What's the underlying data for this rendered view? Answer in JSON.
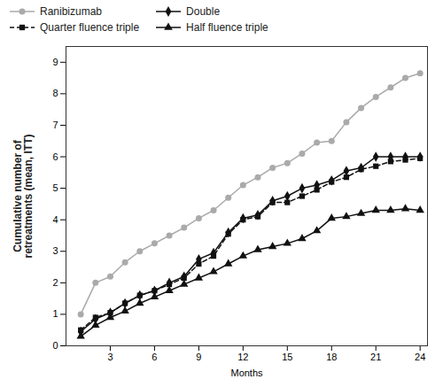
{
  "chart_data": {
    "type": "line",
    "xlabel": "Months",
    "ylabel": "Cumulative number of\nretreatments (mean, ITT)",
    "x": [
      1,
      2,
      3,
      4,
      5,
      6,
      7,
      8,
      9,
      10,
      11,
      12,
      13,
      14,
      15,
      16,
      17,
      18,
      19,
      20,
      21,
      22,
      23,
      24
    ],
    "series": [
      {
        "name": "Ranibizumab",
        "color": "#aaaaaa",
        "marker": "circle",
        "line_style": "solid",
        "values": [
          1.0,
          2.0,
          2.2,
          2.65,
          3.0,
          3.25,
          3.5,
          3.75,
          4.05,
          4.3,
          4.7,
          5.1,
          5.35,
          5.65,
          5.8,
          6.1,
          6.45,
          6.5,
          7.1,
          7.55,
          7.9,
          8.2,
          8.5,
          8.65
        ]
      },
      {
        "name": "Double",
        "color": "#111111",
        "marker": "diamond",
        "line_style": "solid",
        "values": [
          0.45,
          0.85,
          1.05,
          1.35,
          1.6,
          1.75,
          2.0,
          2.2,
          2.75,
          2.95,
          3.6,
          4.05,
          4.15,
          4.6,
          4.75,
          5.0,
          5.1,
          5.25,
          5.55,
          5.65,
          6.0,
          6.0,
          6.0,
          6.0
        ]
      },
      {
        "name": "Quarter fluence triple",
        "color": "#111111",
        "marker": "square",
        "line_style": "dashed",
        "values": [
          0.5,
          0.9,
          1.05,
          1.35,
          1.6,
          1.75,
          1.95,
          2.15,
          2.6,
          2.85,
          3.55,
          4.0,
          4.1,
          4.55,
          4.55,
          4.75,
          4.95,
          5.2,
          5.35,
          5.6,
          5.7,
          5.85,
          5.9,
          5.95
        ]
      },
      {
        "name": "Half fluence triple",
        "color": "#111111",
        "marker": "triangle",
        "line_style": "solid",
        "values": [
          0.3,
          0.65,
          0.9,
          1.1,
          1.35,
          1.55,
          1.75,
          1.95,
          2.15,
          2.35,
          2.6,
          2.85,
          3.05,
          3.15,
          3.25,
          3.4,
          3.65,
          4.05,
          4.1,
          4.2,
          4.3,
          4.3,
          4.35,
          4.3
        ]
      }
    ],
    "xlim": [
      0,
      24.5
    ],
    "ylim": [
      0,
      9.5
    ],
    "xticks": [
      3,
      6,
      9,
      12,
      15,
      18,
      21,
      24
    ],
    "yticks": [
      0,
      1,
      2,
      3,
      4,
      5,
      6,
      7,
      8,
      9
    ],
    "legend": "upper left"
  }
}
